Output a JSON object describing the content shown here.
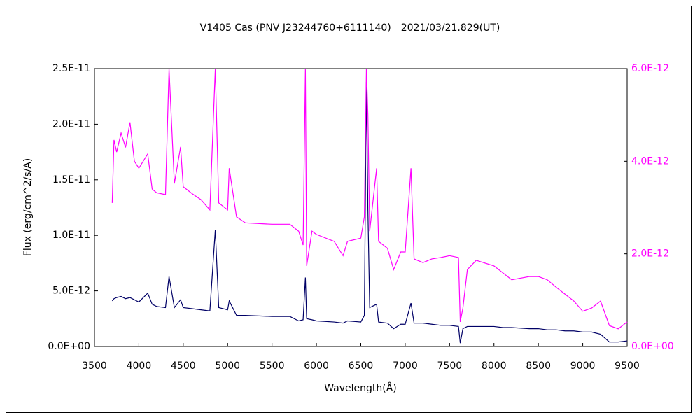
{
  "chart_data": {
    "type": "line",
    "title": "V1405 Cas (PNV J23244760+6111140)　2021/03/21.829(UT)",
    "x_label": "Wavelength(Å)",
    "y_label": "Flux (erg/cm^2/s/A)",
    "xlim": [
      3500,
      9500
    ],
    "xticks": [
      3500,
      4000,
      4500,
      5000,
      5500,
      6000,
      6500,
      7000,
      7500,
      8000,
      8500,
      9000,
      9500
    ],
    "ylim": [
      0,
      2.5e-11
    ],
    "yticks": [
      {
        "value": 0,
        "label": "0.0E+00"
      },
      {
        "value": 5e-12,
        "label": "5.0E-12"
      },
      {
        "value": 1e-11,
        "label": "1.0E-11"
      },
      {
        "value": 1.5e-11,
        "label": "1.5E-11"
      },
      {
        "value": 2e-11,
        "label": "2.0E-11"
      },
      {
        "value": 2.5e-11,
        "label": "2.5E-11"
      }
    ],
    "y2lim": [
      0,
      6e-12
    ],
    "y2ticks": [
      {
        "value": 0,
        "label": "0.0E+00"
      },
      {
        "value": 2e-12,
        "label": "2.0E-12"
      },
      {
        "value": 4e-12,
        "label": "4.0E-12"
      },
      {
        "value": 6e-12,
        "label": "6.0E-12"
      }
    ],
    "y2_color": "#ff00ff",
    "grid": false,
    "x": [
      3700,
      3720,
      3750,
      3800,
      3850,
      3900,
      3950,
      4000,
      4100,
      4150,
      4200,
      4300,
      4340,
      4400,
      4470,
      4500,
      4600,
      4700,
      4800,
      4861,
      4900,
      5000,
      5018,
      5100,
      5200,
      5500,
      5700,
      5800,
      5850,
      5876,
      5890,
      5950,
      6000,
      6200,
      6300,
      6350,
      6500,
      6540,
      6563,
      6580,
      6600,
      6678,
      6700,
      6800,
      6870,
      6950,
      7000,
      7065,
      7100,
      7200,
      7300,
      7400,
      7500,
      7600,
      7620,
      7650,
      7700,
      7800,
      8000,
      8100,
      8200,
      8400,
      8500,
      8600,
      8700,
      8800,
      8900,
      9000,
      9100,
      9200,
      9300,
      9400,
      9500
    ],
    "series": [
      {
        "color": "#000066",
        "values": [
          4.1e-12,
          4.3e-12,
          4.4e-12,
          4.5e-12,
          4.3e-12,
          4.4e-12,
          4.2e-12,
          4e-12,
          4.8e-12,
          3.8e-12,
          3.6e-12,
          3.5e-12,
          6.3e-12,
          3.5e-12,
          4.2e-12,
          3.5e-12,
          3.4e-12,
          3.3e-12,
          3.2e-12,
          1.05e-11,
          3.5e-12,
          3.3e-12,
          4.1e-12,
          2.8e-12,
          2.8e-12,
          2.7e-12,
          2.7e-12,
          2.3e-12,
          2.4e-12,
          6.2e-12,
          2.5e-12,
          2.4e-12,
          2.3e-12,
          2.2e-12,
          2.1e-12,
          2.3e-12,
          2.2e-12,
          2.8e-12,
          2.38e-11,
          1.23e-11,
          3.5e-12,
          3.8e-12,
          2.2e-12,
          2.1e-12,
          1.6e-12,
          2e-12,
          2e-12,
          3.9e-12,
          2.1e-12,
          2.1e-12,
          2e-12,
          1.9e-12,
          1.9e-12,
          1.8e-12,
          3e-13,
          1.6e-12,
          1.8e-12,
          1.8e-12,
          1.8e-12,
          1.7e-12,
          1.7e-12,
          1.6e-12,
          1.6e-12,
          1.5e-12,
          1.5e-12,
          1.4e-12,
          1.4e-12,
          1.3e-12,
          1.3e-12,
          1.1e-12,
          4e-13,
          4e-13,
          5e-13
        ]
      },
      {
        "color": "#ff00ff",
        "axis": "y2",
        "values": [
          3.1e-12,
          4.46e-12,
          4.2e-12,
          4.61e-12,
          4.3e-12,
          4.84e-12,
          4e-12,
          3.85e-12,
          4.16e-12,
          3.4e-12,
          3.32e-12,
          3.28e-12,
          6e-12,
          3.52e-12,
          4.31e-12,
          3.45e-12,
          3.3e-12,
          3.17e-12,
          2.95e-12,
          6e-12,
          3.1e-12,
          2.95e-12,
          3.85e-12,
          2.8e-12,
          2.67e-12,
          2.64e-12,
          2.64e-12,
          2.49e-12,
          2.19e-12,
          6e-12,
          1.74e-12,
          2.49e-12,
          2.42e-12,
          2.27e-12,
          1.96e-12,
          2.27e-12,
          2.34e-12,
          2.8e-12,
          6e-12,
          5e-12,
          2.49e-12,
          3.85e-12,
          2.27e-12,
          2.12e-12,
          1.66e-12,
          2.04e-12,
          2.04e-12,
          3.85e-12,
          1.89e-12,
          1.81e-12,
          1.89e-12,
          1.92e-12,
          1.96e-12,
          1.92e-12,
          5.3e-13,
          8.3e-13,
          1.66e-12,
          1.86e-12,
          1.74e-12,
          1.59e-12,
          1.44e-12,
          1.51e-12,
          1.51e-12,
          1.44e-12,
          1.28e-12,
          1.13e-12,
          9.8e-13,
          7.6e-13,
          8.3e-13,
          9.8e-13,
          4.5e-13,
          3.8e-13,
          5.3e-13
        ]
      }
    ]
  }
}
